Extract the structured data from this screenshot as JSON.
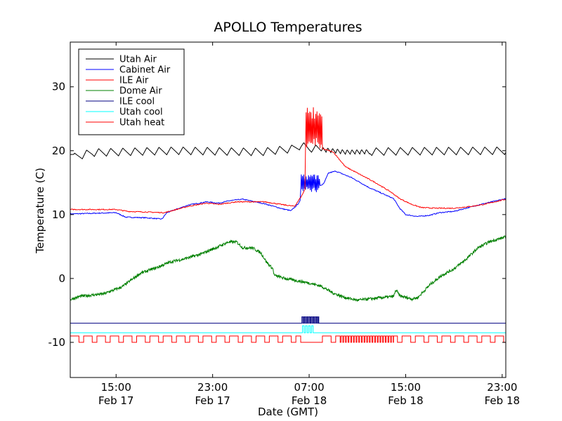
{
  "chart_data": {
    "type": "line",
    "title": "APOLLO Temperatures",
    "xlabel": "Date (GMT)",
    "ylabel": "Temperature (C)",
    "x_unit": "hours since Feb 17 00:00 GMT",
    "xlim": [
      11.2,
      47.3
    ],
    "ylim": [
      -15.5,
      37
    ],
    "grid": false,
    "legend_position": "top-left",
    "x_ticks": [
      {
        "value": 15,
        "line1": "15:00",
        "line2": "Feb 17"
      },
      {
        "value": 23,
        "line1": "23:00",
        "line2": "Feb 17"
      },
      {
        "value": 31,
        "line1": "07:00",
        "line2": "Feb 18"
      },
      {
        "value": 39,
        "line1": "15:00",
        "line2": "Feb 18"
      },
      {
        "value": 47,
        "line1": "23:00",
        "line2": "Feb 18"
      }
    ],
    "y_ticks": [
      {
        "value": -10,
        "label": "-10"
      },
      {
        "value": 0,
        "label": "0"
      },
      {
        "value": 10,
        "label": "10"
      },
      {
        "value": 20,
        "label": "20"
      },
      {
        "value": 30,
        "label": "30"
      }
    ],
    "series": [
      {
        "name": "Utah Air",
        "color": "#000000",
        "style": "sawtooth",
        "base": 20,
        "amplitude": 0.6,
        "period": 1.0,
        "points": [
          [
            11.2,
            20.0
          ],
          [
            11.5,
            19.0
          ],
          [
            13,
            19.7
          ],
          [
            20,
            20.0
          ],
          [
            27,
            19.8
          ],
          [
            29.6,
            20.3
          ],
          [
            30.3,
            20.8
          ],
          [
            31,
            20.4
          ],
          [
            32,
            20.2
          ],
          [
            34,
            19.8
          ],
          [
            38,
            19.9
          ],
          [
            47.3,
            20.0
          ]
        ],
        "fine_osc": [
          32,
          36,
          0.4
        ]
      },
      {
        "name": "Cabinet Air",
        "color": "#0000ff",
        "style": "smooth",
        "points": [
          [
            11.2,
            10.1
          ],
          [
            15,
            10.3
          ],
          [
            15.8,
            9.6
          ],
          [
            17.5,
            9.5
          ],
          [
            18.8,
            9.3
          ],
          [
            19.2,
            10.3
          ],
          [
            21,
            11.5
          ],
          [
            22.5,
            12.0
          ],
          [
            23.5,
            11.8
          ],
          [
            24.5,
            12.2
          ],
          [
            25.5,
            12.4
          ],
          [
            27.3,
            11.7
          ],
          [
            28.8,
            10.9
          ],
          [
            29.5,
            10.6
          ],
          [
            30.0,
            11.5
          ],
          [
            30.6,
            13.0
          ],
          [
            31.3,
            14.0
          ],
          [
            32.2,
            14.8
          ],
          [
            32.6,
            16.5
          ],
          [
            33.2,
            16.8
          ],
          [
            34.5,
            15.8
          ],
          [
            36.0,
            14.2
          ],
          [
            38.0,
            12.5
          ],
          [
            38.5,
            11.0
          ],
          [
            39.0,
            10.0
          ],
          [
            40.0,
            9.7
          ],
          [
            41.0,
            9.9
          ],
          [
            41.8,
            10.3
          ],
          [
            43.0,
            10.5
          ],
          [
            45.0,
            11.5
          ],
          [
            47.3,
            12.5
          ]
        ],
        "bursts": [
          {
            "from": 30.3,
            "to": 31.9,
            "low": 13.5,
            "high": 16.3
          }
        ]
      },
      {
        "name": "ILE Air",
        "color": "#ff0000",
        "style": "smooth",
        "points": [
          [
            11.2,
            10.8
          ],
          [
            15,
            10.8
          ],
          [
            16,
            10.5
          ],
          [
            19,
            10.3
          ],
          [
            21,
            11.3
          ],
          [
            22.5,
            11.8
          ],
          [
            23.5,
            11.6
          ],
          [
            25,
            12.0
          ],
          [
            27.3,
            12.0
          ],
          [
            29.0,
            11.5
          ],
          [
            29.8,
            11.3
          ],
          [
            30.4,
            13.0
          ],
          [
            30.8,
            14.5
          ],
          [
            31.0,
            17.0
          ],
          [
            31.1,
            18.5
          ],
          [
            31.6,
            20.5
          ],
          [
            32.3,
            20.2
          ],
          [
            33.0,
            19.8
          ],
          [
            34.0,
            17.5
          ],
          [
            35.0,
            16.5
          ],
          [
            36.5,
            15.0
          ],
          [
            37.8,
            13.5
          ],
          [
            38.5,
            12.5
          ],
          [
            39.5,
            11.6
          ],
          [
            40.3,
            11.1
          ],
          [
            41.5,
            11.0
          ],
          [
            43,
            11.0
          ],
          [
            44.5,
            11.3
          ],
          [
            45.5,
            11.6
          ],
          [
            47.3,
            12.4
          ]
        ],
        "bursts": [
          {
            "from": 30.7,
            "to": 32.1,
            "low": 20.3,
            "high": 27.0
          }
        ]
      },
      {
        "name": "Dome Air",
        "color": "#008000",
        "style": "noisy",
        "points": [
          [
            11.2,
            -3.3
          ],
          [
            12,
            -2.8
          ],
          [
            14,
            -2.4
          ],
          [
            15.5,
            -1.3
          ],
          [
            17,
            0.8
          ],
          [
            18.5,
            1.8
          ],
          [
            19.5,
            2.6
          ],
          [
            20.5,
            3.0
          ],
          [
            22,
            3.8
          ],
          [
            23.5,
            5.0
          ],
          [
            24.3,
            5.7
          ],
          [
            25.0,
            5.7
          ],
          [
            25.5,
            4.8
          ],
          [
            26.3,
            4.8
          ],
          [
            27.0,
            4.0
          ],
          [
            27.5,
            2.5
          ],
          [
            28.0,
            1.5
          ],
          [
            28.1,
            0.5
          ],
          [
            29,
            0.0
          ],
          [
            31,
            -0.7
          ],
          [
            32,
            -1.2
          ],
          [
            33.0,
            -2.3
          ],
          [
            34.0,
            -3.0
          ],
          [
            35.0,
            -3.4
          ],
          [
            36,
            -3.2
          ],
          [
            37,
            -3.0
          ],
          [
            38,
            -2.8
          ],
          [
            38.2,
            -1.8
          ],
          [
            38.5,
            -2.7
          ],
          [
            39.5,
            -3.2
          ],
          [
            40.0,
            -3.0
          ],
          [
            41.0,
            -1.0
          ],
          [
            42,
            0.5
          ],
          [
            43,
            1.5
          ],
          [
            44,
            3.0
          ],
          [
            45,
            4.8
          ],
          [
            46,
            5.8
          ],
          [
            47.3,
            6.5
          ]
        ]
      },
      {
        "name": "ILE cool",
        "color": "#000080",
        "style": "pulse",
        "baseline": -7.0,
        "on_value": -6.0,
        "windows": [
          [
            30.4,
            31.8
          ]
        ],
        "pulse_period": 0.15
      },
      {
        "name": "Utah cool",
        "color": "#00ffff",
        "style": "pulse",
        "baseline": -8.5,
        "on_value": -7.4,
        "windows": [
          [
            30.4,
            31.4
          ]
        ],
        "pulse_period": 0.25
      },
      {
        "name": "Utah heat",
        "color": "#ff0000",
        "style": "pulse",
        "baseline": -10.0,
        "on_value": -9.0,
        "dense_window": [
          33.5,
          38.0
        ],
        "pulse_period": 1.1,
        "windows": [
          [
            11.2,
            30.3
          ],
          [
            31.8,
            47.3
          ]
        ]
      }
    ]
  }
}
